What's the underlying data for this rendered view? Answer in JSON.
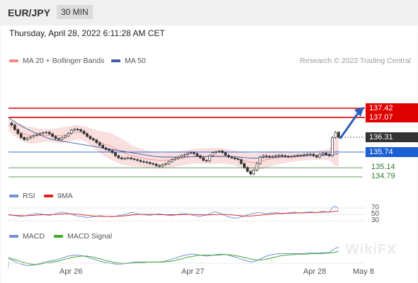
{
  "header": {
    "symbol": "EUR/JPY",
    "timeframe": "30 MIN",
    "datetime": "Thursday, April 28, 2022 6:11:28 AM CET"
  },
  "legend": {
    "bb": "MA 20 + Bollinger Bands",
    "ma50": "MA 50",
    "rsi": "RSI",
    "rsi_ma": "9MA",
    "macd": "MACD",
    "macd_signal": "MACD Signal",
    "research": "Research © 2022 Trading Central"
  },
  "colors": {
    "candle": "#333333",
    "bb_fill": "#fadcdc",
    "bb_line": "#f08a8a",
    "ma50": "#3b5ea6",
    "resistance": "#e00000",
    "current": "#333333",
    "pivot": "#1a5fd4",
    "support": "#2e7d32",
    "rsi": "#6f8fd6",
    "rsi_ma": "#d22",
    "macd": "#6f8fd6",
    "macd_signal": "#46a832"
  },
  "chart_data": {
    "type": "candlestick",
    "title": "EUR/JPY",
    "ylim": [
      134.6,
      137.8
    ],
    "x_ticks": [
      "Apr 26",
      "Apr 27",
      "Apr 28",
      "May 8"
    ],
    "candles": [
      136.85,
      136.78,
      136.6,
      136.45,
      136.3,
      136.22,
      136.28,
      136.32,
      136.38,
      136.42,
      136.45,
      136.48,
      136.5,
      136.44,
      136.34,
      136.26,
      136.22,
      136.3,
      136.36,
      136.46,
      136.58,
      136.62,
      136.6,
      136.54,
      136.45,
      136.34,
      136.25,
      136.2,
      136.1,
      136.0,
      135.9,
      135.84,
      135.8,
      135.72,
      135.6,
      135.52,
      135.48,
      135.5,
      135.52,
      135.48,
      135.45,
      135.42,
      135.38,
      135.36,
      135.34,
      135.3,
      135.28,
      135.22,
      135.2,
      135.26,
      135.3,
      135.38,
      135.45,
      135.5,
      135.55,
      135.6,
      135.64,
      135.7,
      135.72,
      135.68,
      135.6,
      135.52,
      135.42,
      135.4,
      135.6,
      135.72,
      135.75,
      135.78,
      135.72,
      135.62,
      135.55,
      135.52,
      135.48,
      135.45,
      135.3,
      135.15,
      135.0,
      134.9,
      135.05,
      135.3,
      135.55,
      135.6,
      135.58,
      135.55,
      135.58,
      135.6,
      135.62,
      135.6,
      135.58,
      135.56,
      135.58,
      135.6,
      135.62,
      135.62,
      135.64,
      135.66,
      135.66,
      135.6,
      135.55,
      135.65,
      135.7,
      135.65,
      135.6,
      136.3,
      136.5,
      136.31
    ],
    "ma50": [
      137.05,
      136.98,
      136.9,
      136.82,
      136.75,
      136.68,
      136.62,
      136.56,
      136.5,
      136.45,
      136.4,
      136.35,
      136.3,
      136.26,
      136.22,
      136.2,
      136.18,
      136.16,
      136.14,
      136.12,
      136.1,
      136.08,
      136.06,
      136.04,
      136.02,
      136.0,
      135.98,
      135.96,
      135.94,
      135.92,
      135.9,
      135.88,
      135.86,
      135.84,
      135.82,
      135.8,
      135.78,
      135.76,
      135.74,
      135.72,
      135.7,
      135.68,
      135.66,
      135.64,
      135.62,
      135.6,
      135.58,
      135.57,
      135.56,
      135.55,
      135.55,
      135.55,
      135.55,
      135.55,
      135.55,
      135.55,
      135.55,
      135.56,
      135.56,
      135.56,
      135.56,
      135.56,
      135.56,
      135.56,
      135.57,
      135.57,
      135.57,
      135.57,
      135.57,
      135.57,
      135.57,
      135.57,
      135.56,
      135.55,
      135.54,
      135.53,
      135.52,
      135.51,
      135.51,
      135.51,
      135.52,
      135.53,
      135.53,
      135.54,
      135.54,
      135.55,
      135.55,
      135.56,
      135.56,
      135.57,
      135.57,
      135.58,
      135.58,
      135.59,
      135.59,
      135.6,
      135.6,
      135.6,
      135.6,
      135.61,
      135.61,
      135.62,
      135.62,
      135.64,
      135.66,
      135.68
    ],
    "bb_upper": [
      137.0,
      136.95,
      136.9,
      136.85,
      136.8,
      136.75,
      136.72,
      136.7,
      136.68,
      136.66,
      136.64,
      136.62,
      136.62,
      136.63,
      136.64,
      136.65,
      136.66,
      136.68,
      136.7,
      136.72,
      136.75,
      136.78,
      136.78,
      136.76,
      136.73,
      136.7,
      136.66,
      136.62,
      136.58,
      136.55,
      136.52,
      136.5,
      136.48,
      136.44,
      136.38,
      136.32,
      136.25,
      136.18,
      136.1,
      136.02,
      135.96,
      135.92,
      135.88,
      135.84,
      135.8,
      135.78,
      135.76,
      135.74,
      135.72,
      135.72,
      135.73,
      135.74,
      135.75,
      135.76,
      135.77,
      135.78,
      135.8,
      135.82,
      135.84,
      135.86,
      135.87,
      135.88,
      135.89,
      135.89,
      135.9,
      135.9,
      135.9,
      135.89,
      135.88,
      135.86,
      135.84,
      135.82,
      135.8,
      135.78,
      135.76,
      135.74,
      135.72,
      135.7,
      135.69,
      135.7,
      135.72,
      135.74,
      135.76,
      135.77,
      135.78,
      135.78,
      135.78,
      135.77,
      135.76,
      135.75,
      135.74,
      135.73,
      135.73,
      135.73,
      135.74,
      135.75,
      135.76,
      135.77,
      135.78,
      135.8,
      135.82,
      135.84,
      135.86,
      136.1,
      136.3,
      136.4
    ],
    "bb_lower": [
      136.55,
      136.45,
      136.35,
      136.25,
      136.18,
      136.12,
      136.08,
      136.06,
      136.06,
      136.08,
      136.1,
      136.12,
      136.14,
      136.14,
      136.12,
      136.1,
      136.08,
      136.08,
      136.1,
      136.12,
      136.16,
      136.2,
      136.22,
      136.2,
      136.16,
      136.1,
      136.02,
      135.92,
      135.82,
      135.72,
      135.62,
      135.54,
      135.48,
      135.42,
      135.36,
      135.31,
      135.27,
      135.24,
      135.22,
      135.2,
      135.19,
      135.18,
      135.17,
      135.16,
      135.15,
      135.14,
      135.13,
      135.12,
      135.12,
      135.12,
      135.13,
      135.14,
      135.16,
      135.18,
      135.2,
      135.22,
      135.24,
      135.26,
      135.28,
      135.3,
      135.3,
      135.3,
      135.29,
      135.28,
      135.28,
      135.28,
      135.29,
      135.3,
      135.3,
      135.29,
      135.27,
      135.25,
      135.22,
      135.18,
      135.14,
      135.1,
      135.05,
      135.0,
      135.0,
      135.02,
      135.06,
      135.1,
      135.14,
      135.18,
      135.22,
      135.25,
      135.28,
      135.3,
      135.32,
      135.34,
      135.36,
      135.38,
      135.4,
      135.41,
      135.42,
      135.43,
      135.44,
      135.44,
      135.44,
      135.45,
      135.45,
      135.44,
      135.42,
      135.3,
      135.2,
      135.2
    ],
    "levels": [
      {
        "value": 137.42,
        "label": "137.42",
        "style": "resistance"
      },
      {
        "value": 137.07,
        "label": "137.07",
        "style": "resistance"
      },
      {
        "value": 136.31,
        "label": "136.31",
        "style": "current"
      },
      {
        "value": 135.74,
        "label": "135.74",
        "style": "pivot"
      },
      {
        "value": 135.14,
        "label": "135.14",
        "style": "support"
      },
      {
        "value": 134.79,
        "label": "134.79",
        "style": "support"
      }
    ],
    "target_arrow": {
      "from": 136.31,
      "to": 137.42
    },
    "rsi": {
      "levels": [
        "70",
        "50",
        "30"
      ],
      "values": [
        50,
        48,
        46,
        44,
        43,
        45,
        47,
        49,
        51,
        53,
        52,
        50,
        48,
        47,
        49,
        52,
        55,
        57,
        56,
        53,
        50,
        47,
        45,
        44,
        42,
        40,
        41,
        43,
        44,
        46,
        45,
        44,
        43,
        42,
        44,
        46,
        48,
        50,
        53,
        56,
        55,
        52,
        50,
        49,
        48,
        47,
        49,
        51,
        52,
        50,
        48,
        47,
        46,
        48,
        50,
        52,
        53,
        51,
        49,
        47,
        45,
        44,
        46,
        48,
        52,
        56,
        58,
        55,
        50,
        46,
        42,
        40,
        38,
        39,
        42,
        45,
        48,
        51,
        53,
        55,
        56,
        54,
        52,
        53,
        55,
        56,
        54,
        52,
        53,
        55,
        56,
        57,
        55,
        54,
        56,
        57,
        58,
        57,
        55,
        58,
        60,
        58,
        56,
        72,
        75,
        68
      ],
      "ma": [
        48,
        47.5,
        47,
        46.5,
        46,
        45.8,
        45.9,
        46.2,
        46.8,
        47.5,
        48.2,
        48.8,
        49.2,
        49.3,
        49.5,
        50,
        50.5,
        51.2,
        51.8,
        52,
        51.8,
        51.2,
        50.4,
        49.4,
        48.2,
        47,
        46,
        45.2,
        44.4,
        44,
        43.8,
        43.6,
        43.5,
        43.6,
        43.8,
        44.2,
        44.8,
        45.6,
        46.6,
        47.8,
        48.8,
        49.6,
        50,
        50.2,
        50.2,
        50,
        49.8,
        49.6,
        49.4,
        49.2,
        49,
        48.9,
        48.8,
        48.8,
        48.9,
        49.1,
        49.4,
        49.6,
        49.7,
        49.6,
        49.3,
        48.9,
        48.5,
        48.3,
        48.4,
        48.8,
        49.4,
        49.8,
        49.9,
        49.7,
        49.2,
        48.4,
        47.4,
        46.4,
        45.6,
        45,
        44.8,
        45,
        45.6,
        46.4,
        47.4,
        48.4,
        49.4,
        50.4,
        51.2,
        52,
        52.6,
        53,
        53.3,
        53.6,
        54,
        54.4,
        54.6,
        54.8,
        55,
        55.3,
        55.6,
        55.9,
        56.1,
        56.4,
        56.8,
        57.2,
        57.4,
        58.8,
        60.2,
        61.2
      ]
    },
    "macd": {
      "macd": [
        -0.05,
        -0.08,
        -0.11,
        -0.14,
        -0.16,
        -0.18,
        -0.19,
        -0.19,
        -0.18,
        -0.17,
        -0.15,
        -0.13,
        -0.11,
        -0.1,
        -0.09,
        -0.08,
        -0.06,
        -0.04,
        -0.02,
        0.0,
        0.01,
        0.02,
        0.02,
        0.01,
        0.0,
        -0.02,
        -0.04,
        -0.06,
        -0.08,
        -0.1,
        -0.12,
        -0.13,
        -0.14,
        -0.15,
        -0.16,
        -0.16,
        -0.16,
        -0.15,
        -0.14,
        -0.13,
        -0.12,
        -0.12,
        -0.12,
        -0.12,
        -0.12,
        -0.12,
        -0.12,
        -0.12,
        -0.12,
        -0.11,
        -0.1,
        -0.08,
        -0.06,
        -0.04,
        -0.02,
        0.0,
        0.02,
        0.03,
        0.04,
        0.04,
        0.03,
        0.02,
        0.01,
        0.0,
        0.01,
        0.02,
        0.03,
        0.04,
        0.04,
        0.03,
        0.02,
        0.0,
        -0.02,
        -0.04,
        -0.06,
        -0.08,
        -0.1,
        -0.12,
        -0.11,
        -0.09,
        -0.06,
        -0.03,
        0.0,
        0.02,
        0.03,
        0.04,
        0.05,
        0.05,
        0.05,
        0.05,
        0.05,
        0.05,
        0.05,
        0.05,
        0.05,
        0.06,
        0.06,
        0.06,
        0.06,
        0.06,
        0.07,
        0.07,
        0.07,
        0.12,
        0.16,
        0.18
      ],
      "signal": [
        -0.03,
        -0.05,
        -0.07,
        -0.09,
        -0.11,
        -0.13,
        -0.15,
        -0.16,
        -0.17,
        -0.17,
        -0.16,
        -0.15,
        -0.14,
        -0.13,
        -0.12,
        -0.11,
        -0.1,
        -0.08,
        -0.06,
        -0.05,
        -0.03,
        -0.02,
        -0.01,
        0.0,
        0.0,
        0.0,
        -0.01,
        -0.02,
        -0.04,
        -0.05,
        -0.07,
        -0.09,
        -0.1,
        -0.12,
        -0.13,
        -0.14,
        -0.14,
        -0.15,
        -0.15,
        -0.14,
        -0.14,
        -0.13,
        -0.13,
        -0.13,
        -0.12,
        -0.12,
        -0.12,
        -0.12,
        -0.12,
        -0.12,
        -0.11,
        -0.11,
        -0.1,
        -0.09,
        -0.07,
        -0.06,
        -0.04,
        -0.02,
        -0.01,
        0.0,
        0.01,
        0.02,
        0.02,
        0.02,
        0.02,
        0.02,
        0.02,
        0.02,
        0.03,
        0.03,
        0.03,
        0.02,
        0.01,
        0.0,
        -0.01,
        -0.03,
        -0.04,
        -0.06,
        -0.07,
        -0.08,
        -0.08,
        -0.07,
        -0.06,
        -0.05,
        -0.03,
        -0.02,
        0.0,
        0.01,
        0.02,
        0.02,
        0.03,
        0.03,
        0.04,
        0.04,
        0.04,
        0.04,
        0.05,
        0.05,
        0.05,
        0.05,
        0.05,
        0.06,
        0.06,
        0.07,
        0.08,
        0.1
      ]
    }
  },
  "watermark": "WikiFX"
}
